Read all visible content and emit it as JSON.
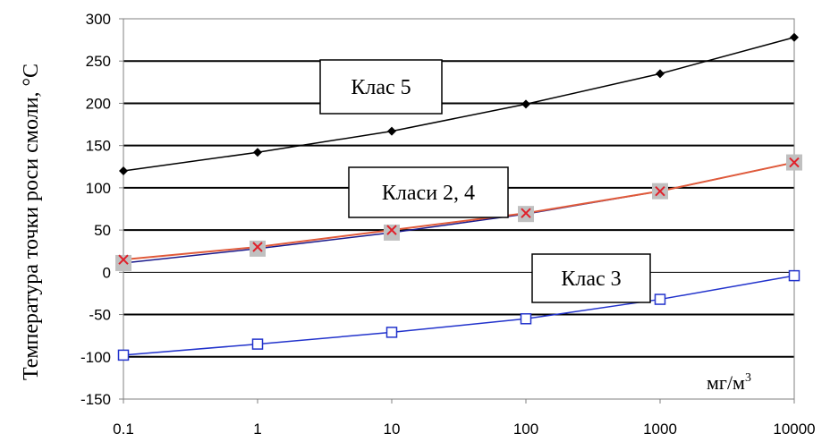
{
  "chart_data": {
    "type": "line",
    "x_scale": "log",
    "x": [
      0.1,
      1,
      10,
      100,
      1000,
      10000
    ],
    "x_tick_labels": [
      "0.1",
      "1",
      "10",
      "100",
      "1000",
      "10000"
    ],
    "ylim": [
      -150,
      300
    ],
    "y_ticks": [
      -150,
      -100,
      -50,
      0,
      50,
      100,
      150,
      200,
      250,
      300
    ],
    "ylabel": "Температура точки роси смоли, °C",
    "unit_label": "мг/м",
    "unit_sup": "3",
    "grid": "horizontal",
    "series": [
      {
        "name": "Клас 5",
        "color": "#000000",
        "marker": "diamond",
        "values": [
          120,
          142,
          167,
          199,
          235,
          278
        ]
      },
      {
        "color": "#1a1a8c",
        "marker": "gray-square",
        "values": [
          11,
          28,
          47,
          69,
          96,
          130
        ]
      },
      {
        "color": "#e05a3a",
        "marker": "cross",
        "values": [
          15,
          30,
          50,
          70,
          96,
          130
        ]
      },
      {
        "name": "Клас 3",
        "color": "#2233cc",
        "marker": "open-square",
        "values": [
          -98,
          -85,
          -71,
          -55,
          -32,
          -4
        ]
      }
    ],
    "annotations": [
      "Клас 5",
      "Класи 2, 4",
      "Клас 3"
    ]
  }
}
